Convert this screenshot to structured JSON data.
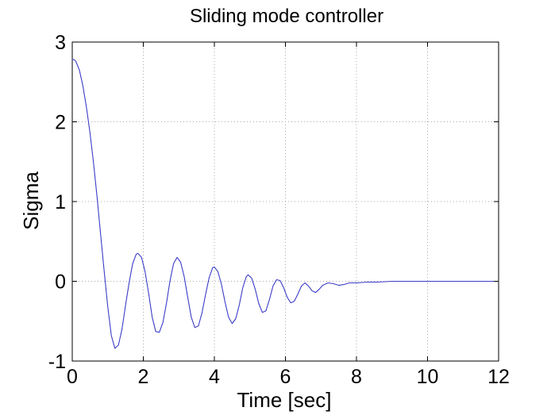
{
  "chart_data": {
    "type": "line",
    "title": "Sliding mode controller",
    "xlabel": "Time [sec]",
    "ylabel": "Sigma",
    "xlim": [
      0,
      12
    ],
    "ylim": [
      -1,
      3
    ],
    "x_ticks": [
      "0",
      "2",
      "4",
      "6",
      "8",
      "10",
      "12"
    ],
    "y_ticks": [
      "-1",
      "0",
      "1",
      "2",
      "3"
    ],
    "x_tick_values": [
      0,
      2,
      4,
      6,
      8,
      10,
      12
    ],
    "y_tick_values": [
      -1,
      0,
      1,
      2,
      3
    ],
    "grid": true,
    "legend": "none",
    "series": [
      {
        "color": "#3c3cc8",
        "points": [
          [
            0,
            2.78
          ],
          [
            0.05,
            2.78
          ],
          [
            0.1,
            2.76
          ],
          [
            0.2,
            2.65
          ],
          [
            0.3,
            2.45
          ],
          [
            0.4,
            2.18
          ],
          [
            0.5,
            1.86
          ],
          [
            0.6,
            1.48
          ],
          [
            0.7,
            1.05
          ],
          [
            0.8,
            0.58
          ],
          [
            0.9,
            0.12
          ],
          [
            1.0,
            -0.32
          ],
          [
            1.1,
            -0.68
          ],
          [
            1.2,
            -0.84
          ],
          [
            1.3,
            -0.8
          ],
          [
            1.4,
            -0.6
          ],
          [
            1.5,
            -0.3
          ],
          [
            1.6,
            -0.02
          ],
          [
            1.7,
            0.22
          ],
          [
            1.8,
            0.34
          ],
          [
            1.85,
            0.35
          ],
          [
            1.95,
            0.3
          ],
          [
            2.05,
            0.12
          ],
          [
            2.15,
            -0.15
          ],
          [
            2.25,
            -0.45
          ],
          [
            2.35,
            -0.63
          ],
          [
            2.45,
            -0.64
          ],
          [
            2.55,
            -0.52
          ],
          [
            2.65,
            -0.28
          ],
          [
            2.75,
            0.0
          ],
          [
            2.85,
            0.22
          ],
          [
            2.95,
            0.3
          ],
          [
            3.05,
            0.24
          ],
          [
            3.15,
            0.06
          ],
          [
            3.25,
            -0.2
          ],
          [
            3.35,
            -0.45
          ],
          [
            3.45,
            -0.58
          ],
          [
            3.55,
            -0.56
          ],
          [
            3.65,
            -0.4
          ],
          [
            3.75,
            -0.17
          ],
          [
            3.85,
            0.04
          ],
          [
            3.95,
            0.17
          ],
          [
            4.0,
            0.18
          ],
          [
            4.1,
            0.12
          ],
          [
            4.2,
            -0.04
          ],
          [
            4.3,
            -0.26
          ],
          [
            4.4,
            -0.45
          ],
          [
            4.5,
            -0.53
          ],
          [
            4.6,
            -0.47
          ],
          [
            4.7,
            -0.3
          ],
          [
            4.8,
            -0.08
          ],
          [
            4.9,
            0.06
          ],
          [
            4.95,
            0.08
          ],
          [
            5.05,
            0.04
          ],
          [
            5.15,
            -0.1
          ],
          [
            5.25,
            -0.28
          ],
          [
            5.35,
            -0.39
          ],
          [
            5.45,
            -0.37
          ],
          [
            5.55,
            -0.23
          ],
          [
            5.65,
            -0.06
          ],
          [
            5.75,
            0.02
          ],
          [
            5.85,
            0.01
          ],
          [
            5.95,
            -0.08
          ],
          [
            6.05,
            -0.2
          ],
          [
            6.15,
            -0.27
          ],
          [
            6.25,
            -0.25
          ],
          [
            6.35,
            -0.16
          ],
          [
            6.45,
            -0.06
          ],
          [
            6.55,
            -0.02
          ],
          [
            6.65,
            -0.06
          ],
          [
            6.75,
            -0.12
          ],
          [
            6.85,
            -0.14
          ],
          [
            6.95,
            -0.1
          ],
          [
            7.05,
            -0.05
          ],
          [
            7.2,
            -0.02
          ],
          [
            7.35,
            -0.03
          ],
          [
            7.5,
            -0.05
          ],
          [
            7.65,
            -0.04
          ],
          [
            7.8,
            -0.02
          ],
          [
            8.0,
            -0.02
          ],
          [
            8.3,
            -0.01
          ],
          [
            8.6,
            -0.01
          ],
          [
            9.0,
            0.0
          ],
          [
            10.0,
            0.0
          ],
          [
            11.0,
            0.0
          ],
          [
            12.0,
            0.0
          ]
        ]
      }
    ]
  }
}
